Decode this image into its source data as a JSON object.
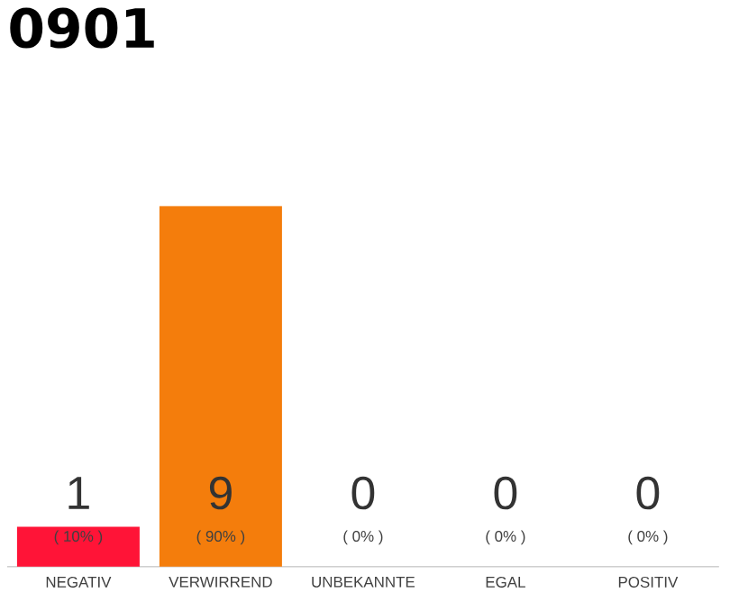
{
  "chart_data": {
    "type": "bar",
    "title": "0901",
    "categories": [
      "NEGATIV",
      "VERWIRREND",
      "UNBEKANNTE",
      "EGAL",
      "POSITIV"
    ],
    "values": [
      1,
      9,
      0,
      0,
      0
    ],
    "colors": [
      "#ff1437",
      "#f47d0c",
      "#e0e0e0",
      "#e0e0e0",
      "#e0e0e0"
    ],
    "data_labels": true,
    "annotations": [
      "( 10% )",
      "( 90% )",
      "( 0% )",
      "( 0% )",
      "( 0% )"
    ]
  }
}
